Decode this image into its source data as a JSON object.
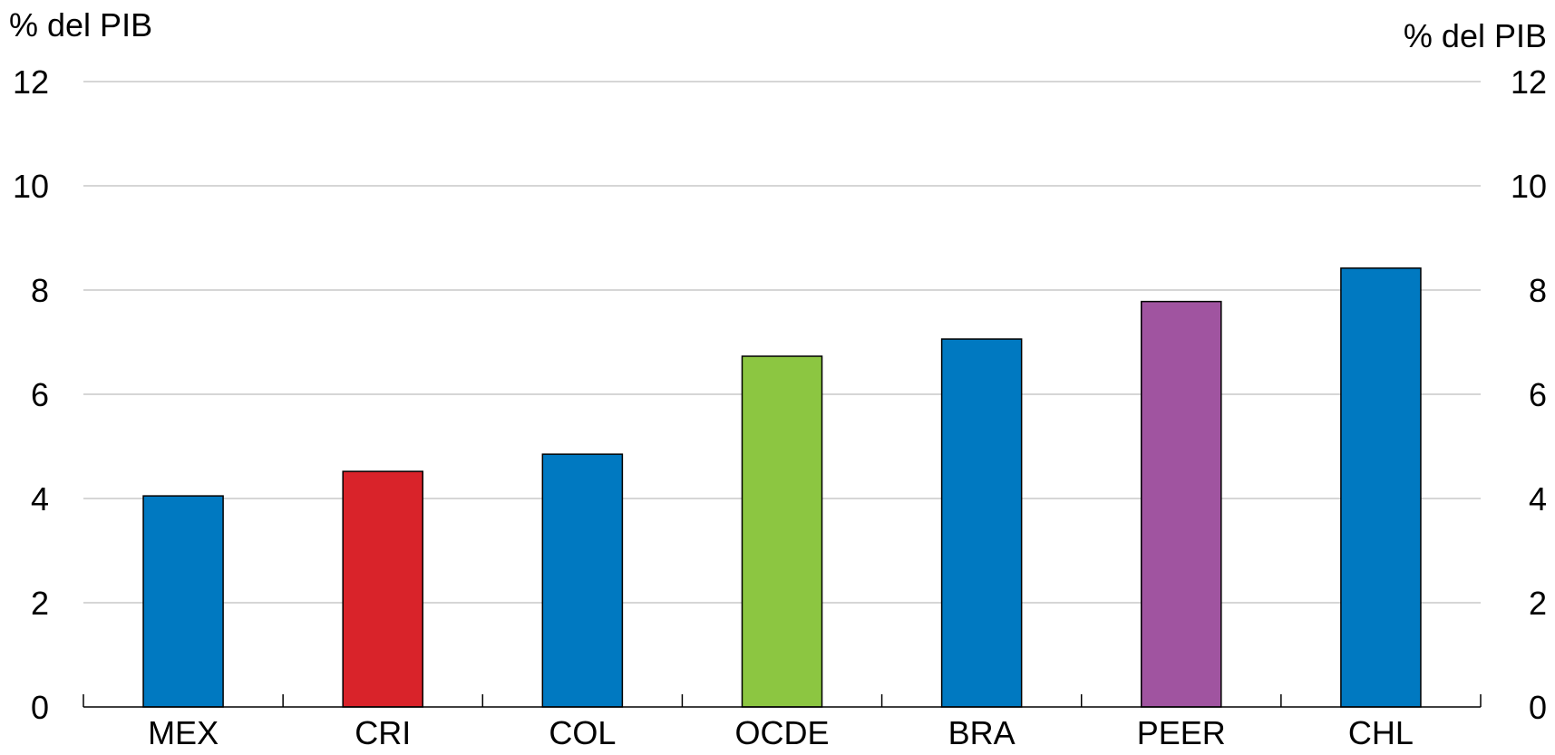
{
  "chart_data": {
    "type": "bar",
    "left_axis_unit": "% del PIB",
    "right_axis_unit": "% del PIB",
    "categories": [
      "MEX",
      "CRI",
      "COL",
      "OCDE",
      "BRA",
      "PEER",
      "CHL"
    ],
    "values": [
      4.05,
      4.52,
      4.85,
      6.73,
      7.06,
      7.78,
      8.42
    ],
    "bar_colors": [
      "#0079c1",
      "#d9232a",
      "#0079c1",
      "#8cc641",
      "#0079c1",
      "#a054a0",
      "#0079c1"
    ],
    "ylim": [
      0,
      12
    ],
    "yticks": [
      0,
      2,
      4,
      6,
      8,
      10,
      12
    ],
    "grid": true,
    "legend": "none"
  }
}
